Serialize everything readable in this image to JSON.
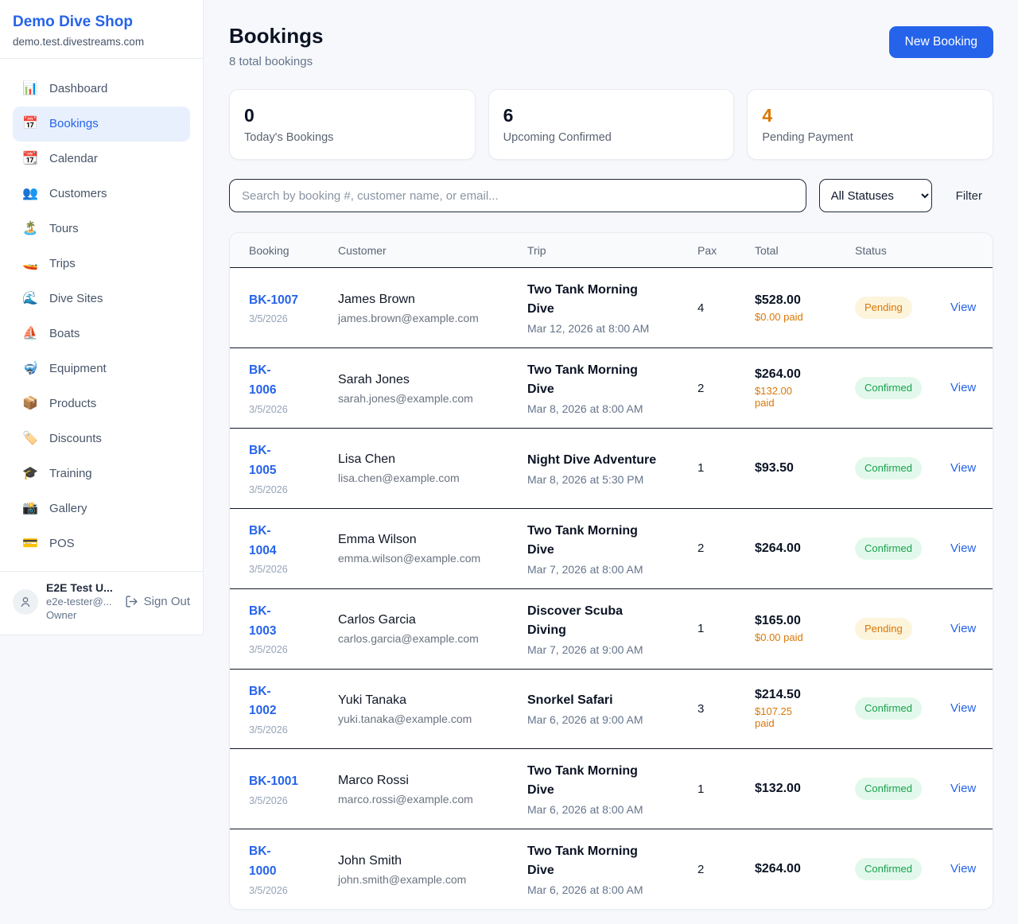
{
  "sidebar": {
    "brand": "Demo Dive Shop",
    "domain": "demo.test.divestreams.com",
    "items": [
      {
        "label": "Dashboard",
        "icon": "bar-chart-icon",
        "emoji": "📊",
        "active": false
      },
      {
        "label": "Bookings",
        "icon": "calendar-icon",
        "emoji": "📅",
        "active": true
      },
      {
        "label": "Calendar",
        "icon": "tear-off-calendar-icon",
        "emoji": "📆",
        "active": false
      },
      {
        "label": "Customers",
        "icon": "people-icon",
        "emoji": "👥",
        "active": false
      },
      {
        "label": "Tours",
        "icon": "desert-island-icon",
        "emoji": "🏝️",
        "active": false
      },
      {
        "label": "Trips",
        "icon": "speedboat-icon",
        "emoji": "🚤",
        "active": false
      },
      {
        "label": "Dive Sites",
        "icon": "wave-icon",
        "emoji": "🌊",
        "active": false
      },
      {
        "label": "Boats",
        "icon": "sailboat-icon",
        "emoji": "⛵",
        "active": false
      },
      {
        "label": "Equipment",
        "icon": "diving-mask-icon",
        "emoji": "🤿",
        "active": false
      },
      {
        "label": "Products",
        "icon": "package-icon",
        "emoji": "📦",
        "active": false
      },
      {
        "label": "Discounts",
        "icon": "label-icon",
        "emoji": "🏷️",
        "active": false
      },
      {
        "label": "Training",
        "icon": "graduation-cap-icon",
        "emoji": "🎓",
        "active": false
      },
      {
        "label": "Gallery",
        "icon": "camera-icon",
        "emoji": "📸",
        "active": false
      },
      {
        "label": "POS",
        "icon": "credit-card-icon",
        "emoji": "💳",
        "active": false
      }
    ],
    "user": {
      "name": "E2E Test U...",
      "email": "e2e-tester@...",
      "role": "Owner",
      "sign_out_label": "Sign Out"
    }
  },
  "header": {
    "title": "Bookings",
    "subtitle": "8 total bookings",
    "new_booking_label": "New Booking"
  },
  "stats": [
    {
      "value": "0",
      "label": "Today's Bookings",
      "highlight": false
    },
    {
      "value": "6",
      "label": "Upcoming Confirmed",
      "highlight": false
    },
    {
      "value": "4",
      "label": "Pending Payment",
      "highlight": true
    }
  ],
  "filters": {
    "search_placeholder": "Search by booking #, customer name, or email...",
    "search_value": "",
    "status_select_value": "All Statuses",
    "filter_label": "Filter"
  },
  "table": {
    "columns": [
      "Booking",
      "Customer",
      "Trip",
      "Pax",
      "Total",
      "Status"
    ],
    "view_label": "View",
    "rows": [
      {
        "id": "BK-1007",
        "id_wrapped": false,
        "date": "3/5/2026",
        "customer": "James Brown",
        "email": "james.brown@example.com",
        "trip": "Two Tank Morning Dive",
        "trip_datetime": "Mar 12, 2026 at 8:00 AM",
        "pax": "4",
        "total": "$528.00",
        "paid": "$0.00 paid",
        "status": "Pending"
      },
      {
        "id": "BK-1006",
        "id_wrapped": true,
        "date": "3/5/2026",
        "customer": "Sarah Jones",
        "email": "sarah.jones@example.com",
        "trip": "Two Tank Morning Dive",
        "trip_datetime": "Mar 8, 2026 at 8:00 AM",
        "pax": "2",
        "total": "$264.00",
        "paid": "$132.00 paid",
        "status": "Confirmed"
      },
      {
        "id": "BK-1005",
        "id_wrapped": true,
        "date": "3/5/2026",
        "customer": "Lisa Chen",
        "email": "lisa.chen@example.com",
        "trip": "Night Dive Adventure",
        "trip_datetime": "Mar 8, 2026 at 5:30 PM",
        "pax": "1",
        "total": "$93.50",
        "paid": null,
        "status": "Confirmed"
      },
      {
        "id": "BK-1004",
        "id_wrapped": true,
        "date": "3/5/2026",
        "customer": "Emma Wilson",
        "email": "emma.wilson@example.com",
        "trip": "Two Tank Morning Dive",
        "trip_datetime": "Mar 7, 2026 at 8:00 AM",
        "pax": "2",
        "total": "$264.00",
        "paid": null,
        "status": "Confirmed"
      },
      {
        "id": "BK-1003",
        "id_wrapped": true,
        "date": "3/5/2026",
        "customer": "Carlos Garcia",
        "email": "carlos.garcia@example.com",
        "trip": "Discover Scuba Diving",
        "trip_datetime": "Mar 7, 2026 at 9:00 AM",
        "pax": "1",
        "total": "$165.00",
        "paid": "$0.00 paid",
        "status": "Pending"
      },
      {
        "id": "BK-1002",
        "id_wrapped": true,
        "date": "3/5/2026",
        "customer": "Yuki Tanaka",
        "email": "yuki.tanaka@example.com",
        "trip": "Snorkel Safari",
        "trip_datetime": "Mar 6, 2026 at 9:00 AM",
        "pax": "3",
        "total": "$214.50",
        "paid": "$107.25 paid",
        "status": "Confirmed"
      },
      {
        "id": "BK-1001",
        "id_wrapped": false,
        "date": "3/5/2026",
        "customer": "Marco Rossi",
        "email": "marco.rossi@example.com",
        "trip": "Two Tank Morning Dive",
        "trip_datetime": "Mar 6, 2026 at 8:00 AM",
        "pax": "1",
        "total": "$132.00",
        "paid": null,
        "status": "Confirmed"
      },
      {
        "id": "BK-1000",
        "id_wrapped": true,
        "date": "3/5/2026",
        "customer": "John Smith",
        "email": "john.smith@example.com",
        "trip": "Two Tank Morning Dive",
        "trip_datetime": "Mar 6, 2026 at 8:00 AM",
        "pax": "2",
        "total": "$264.00",
        "paid": null,
        "status": "Confirmed"
      }
    ]
  },
  "colors": {
    "accent_blue": "#2563eb",
    "pending_text": "#d97706",
    "pending_bg": "#fdf4dc",
    "confirmed_text": "#16a34a",
    "confirmed_bg": "#e3f8ec",
    "page_bg": "#f7f8fb",
    "row_divider": "#111827"
  }
}
